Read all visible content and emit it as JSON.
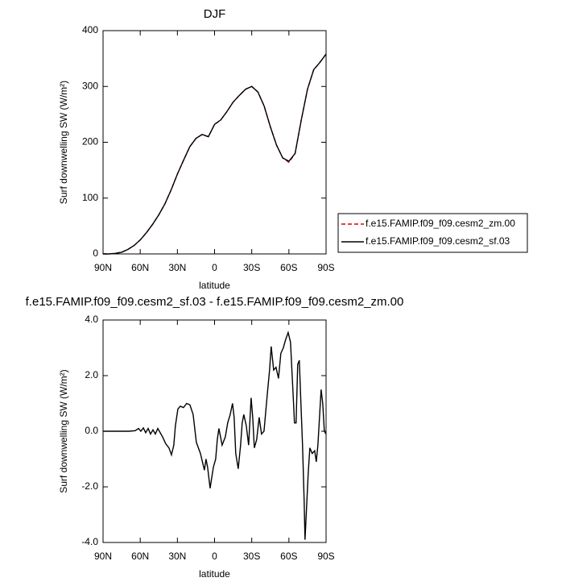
{
  "chart_data": [
    {
      "type": "line",
      "title": "DJF",
      "xlabel": "latitude",
      "ylabel": "Surf downwelling SW (W/m²)",
      "x": [
        90,
        85,
        80,
        75,
        70,
        65,
        60,
        55,
        50,
        45,
        40,
        35,
        30,
        25,
        20,
        15,
        10,
        5,
        0,
        -5,
        -10,
        -15,
        -20,
        -25,
        -30,
        -35,
        -40,
        -45,
        -50,
        -55,
        -60,
        -65,
        -70,
        -75,
        -80,
        -85,
        -90
      ],
      "series": [
        {
          "name": "f.e15.FAMIP.f09_f09.cesm2_zm.00",
          "color": "#e00000",
          "line_style": "dashed",
          "values": [
            0,
            0,
            1,
            3,
            8,
            15,
            25,
            38,
            53,
            70,
            90,
            115,
            143,
            168,
            192,
            207,
            214,
            210,
            232,
            240,
            255,
            272,
            284,
            295,
            300,
            290,
            265,
            228,
            195,
            172,
            164,
            180,
            240,
            295,
            330,
            343,
            358
          ]
        },
        {
          "name": "f.e15.FAMIP.f09_f09.cesm2_sf.03",
          "color": "#000000",
          "line_style": "solid",
          "values": [
            0,
            0,
            1,
            3,
            8,
            15,
            25,
            38,
            53,
            70,
            90,
            115,
            143,
            168,
            192,
            207,
            214,
            210,
            232,
            240,
            255,
            272,
            284,
            295,
            300,
            290,
            265,
            228,
            195,
            172,
            166,
            180,
            240,
            295,
            330,
            343,
            358
          ]
        }
      ],
      "xlim": [
        90,
        -90
      ],
      "xticks": [
        {
          "value": 90,
          "label": "90N"
        },
        {
          "value": 60,
          "label": "60N"
        },
        {
          "value": 30,
          "label": "30N"
        },
        0,
        {
          "value": -30,
          "label": "30S"
        },
        {
          "value": -60,
          "label": "60S"
        },
        {
          "value": -90,
          "label": "90S"
        }
      ],
      "ylim": [
        0,
        400
      ],
      "yticks": [
        0,
        100,
        200,
        300,
        400
      ],
      "legend": "right"
    },
    {
      "type": "line",
      "title": "f.e15.FAMIP.f09_f09.cesm2_sf.03 - f.e15.FAMIP.f09_f09.cesm2_zm.00",
      "xlabel": "latitude",
      "ylabel": "Surf downwelling SW (W/m²)",
      "x": [
        90,
        69.2,
        64,
        61.4,
        59.5,
        57.5,
        55.6,
        53.6,
        51.7,
        49.7,
        47.8,
        45.8,
        43.9,
        42,
        39.4,
        36.8,
        34.8,
        32.9,
        31.6,
        29.6,
        27.7,
        25.1,
        22.5,
        19.9,
        17.3,
        14.7,
        11.4,
        8.2,
        6.9,
        5.6,
        3.6,
        1.0,
        -0.9,
        -2.2,
        -3.5,
        -6.1,
        -8.7,
        -10.6,
        -12.6,
        -14.5,
        -15.8,
        -17.1,
        -19.1,
        -21,
        -22.3,
        -23.6,
        -25.6,
        -27.5,
        -29.5,
        -30.8,
        -32.1,
        -34,
        -36,
        -37.9,
        -39.9,
        -42.5,
        -44.4,
        -45.7,
        -47.7,
        -49.6,
        -51.6,
        -53.5,
        -55.5,
        -57.4,
        -59.4,
        -61.3,
        -63.2,
        -64.5,
        -65.8,
        -67.1,
        -68.4,
        -69.7,
        -71,
        -72.3,
        -73,
        -74.3,
        -75.6,
        -76.9,
        -78.8,
        -80.8,
        -82.1,
        -83.4,
        -84.7,
        -86,
        -87.3,
        -88.6,
        -90
      ],
      "series": [
        {
          "color": "#000000",
          "line_style": "solid",
          "values": [
            0,
            0,
            0.02,
            0.1,
            0,
            0.12,
            -0.05,
            0.1,
            -0.1,
            0.05,
            -0.1,
            0.1,
            -0.05,
            -0.2,
            -0.45,
            -0.6,
            -0.85,
            -0.5,
            0.2,
            0.8,
            0.9,
            0.85,
            1.0,
            0.95,
            0.6,
            -0.4,
            -0.8,
            -1.4,
            -1.0,
            -1.3,
            -2.05,
            -1.3,
            -1.0,
            -0.3,
            0.1,
            -0.5,
            -0.2,
            0.3,
            0.6,
            1.0,
            0.5,
            -0.8,
            -1.35,
            -0.5,
            0.3,
            0.6,
            0.2,
            -0.5,
            1.2,
            0.5,
            -0.6,
            -0.3,
            0.5,
            -0.1,
            0.0,
            1.3,
            2.2,
            3.05,
            2.2,
            2.3,
            1.9,
            2.8,
            3.0,
            3.3,
            3.55,
            3.2,
            1.5,
            0.3,
            0.3,
            2.4,
            2.55,
            1.0,
            -0.5,
            -2.5,
            -3.9,
            -2.7,
            -1.5,
            -0.6,
            -0.8,
            -0.7,
            -1.1,
            -0.5,
            0.5,
            1.5,
            1.0,
            0.0,
            -0.1
          ]
        }
      ],
      "xlim": [
        90,
        -90
      ],
      "xticks": [
        {
          "value": 90,
          "label": "90N"
        },
        {
          "value": 60,
          "label": "60N"
        },
        {
          "value": 30,
          "label": "30N"
        },
        0,
        {
          "value": -30,
          "label": "30S"
        },
        {
          "value": -60,
          "label": "60S"
        },
        {
          "value": -90,
          "label": "90S"
        }
      ],
      "ylim": [
        -4,
        4
      ],
      "yticks": [
        {
          "value": -4,
          "label": "-4.0"
        },
        {
          "value": -2,
          "label": "-2.0"
        },
        {
          "value": 0,
          "label": "0.0"
        },
        {
          "value": 2,
          "label": "2.0"
        },
        {
          "value": 4,
          "label": "4.0"
        }
      ]
    }
  ]
}
